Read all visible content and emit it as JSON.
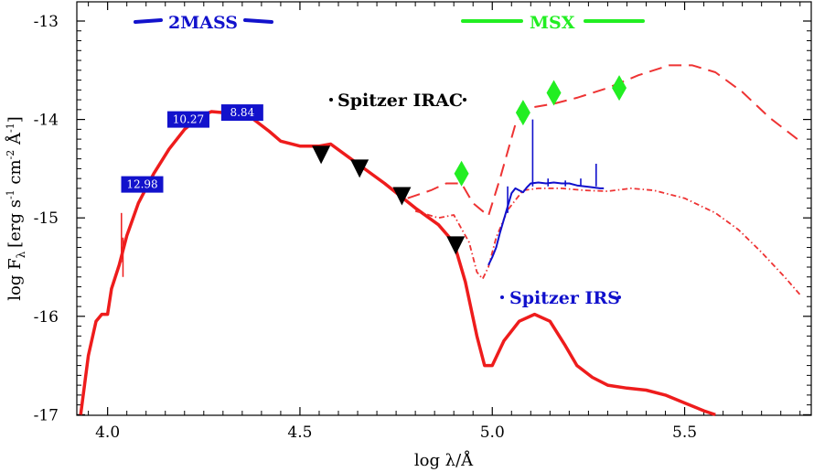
{
  "chart_data": {
    "type": "line",
    "xlabel": "log λ/Å",
    "ylabel": "log F",
    "ylabel_sub": "λ",
    "ylabel_units": "[erg s",
    "ylabel_units_sup1": "-1",
    "ylabel_units_mid": " cm",
    "ylabel_units_sup2": "-2",
    "ylabel_units_end": " Å",
    "ylabel_units_sup3": "-1",
    "ylabel_units_close": "]",
    "xlim": [
      3.92,
      5.8
    ],
    "ylim": [
      -17,
      -12.98
    ],
    "xticks": [
      4.0,
      4.5,
      5.0,
      5.5
    ],
    "xtick_labels": [
      "4.0",
      "4.5",
      "5.0",
      "5.5"
    ],
    "yticks": [
      -13,
      -14,
      -15,
      -16,
      -17
    ],
    "ytick_labels": [
      "-13",
      "-14",
      "-15",
      "-16",
      "-17"
    ],
    "grid": false,
    "colors": {
      "model_red": "#ee1c1c",
      "model_dashed": "#ee3333",
      "irs_blue": "#1010cc",
      "twomass_blue": "#1212cc",
      "msx_green": "#22ee22",
      "irac_black": "#000000"
    },
    "annotations": {
      "twomass": "2MASS",
      "msx": "MSX",
      "irac": "Spitzer IRAC",
      "irs": "Spitzer IRS"
    },
    "twomass_points": [
      {
        "x": 4.09,
        "y": -14.66,
        "label": "12.98"
      },
      {
        "x": 4.21,
        "y": -14.0,
        "label": "10.27"
      },
      {
        "x": 4.35,
        "y": -13.93,
        "label": "8.84"
      }
    ],
    "irac_points": [
      {
        "x": 4.555,
        "y": -14.36
      },
      {
        "x": 4.655,
        "y": -14.5
      },
      {
        "x": 4.765,
        "y": -14.78
      },
      {
        "x": 4.905,
        "y": -15.28
      }
    ],
    "msx_points": [
      {
        "x": 4.92,
        "y": -14.55
      },
      {
        "x": 5.08,
        "y": -13.93
      },
      {
        "x": 5.16,
        "y": -13.73
      },
      {
        "x": 5.33,
        "y": -13.68
      }
    ],
    "series": [
      {
        "style": "solid",
        "x": [
          3.93,
          3.95,
          3.97,
          3.985,
          4.0,
          4.01,
          4.03,
          4.05,
          4.08,
          4.12,
          4.16,
          4.2,
          4.24,
          4.27,
          4.3,
          4.34,
          4.38,
          4.42,
          4.45,
          4.5,
          4.55,
          4.58,
          4.65,
          4.72,
          4.8,
          4.86,
          4.9,
          4.93,
          4.96,
          4.98,
          5.0,
          5.03,
          5.07,
          5.11,
          5.15,
          5.19,
          5.22,
          5.26,
          5.3,
          5.35,
          5.4,
          5.45,
          5.5,
          5.55,
          5.58
        ],
        "y": [
          -17.0,
          -16.4,
          -16.05,
          -15.98,
          -15.98,
          -15.72,
          -15.48,
          -15.18,
          -14.85,
          -14.55,
          -14.3,
          -14.1,
          -13.97,
          -13.92,
          -13.93,
          -13.94,
          -14.0,
          -14.12,
          -14.22,
          -14.27,
          -14.27,
          -14.25,
          -14.45,
          -14.65,
          -14.9,
          -15.07,
          -15.25,
          -15.65,
          -16.2,
          -16.5,
          -16.5,
          -16.25,
          -16.05,
          -15.98,
          -16.05,
          -16.3,
          -16.5,
          -16.62,
          -16.7,
          -16.73,
          -16.75,
          -16.8,
          -16.88,
          -16.96,
          -17.0
        ]
      },
      {
        "style": "dashed",
        "x": [
          4.78,
          4.84,
          4.88,
          4.92,
          4.95,
          4.99,
          5.02,
          5.06,
          5.1,
          5.16,
          5.22,
          5.3,
          5.38,
          5.46,
          5.52,
          5.58,
          5.65,
          5.72,
          5.8
        ],
        "y": [
          -14.8,
          -14.72,
          -14.65,
          -14.65,
          -14.85,
          -14.98,
          -14.6,
          -14.05,
          -13.88,
          -13.84,
          -13.78,
          -13.68,
          -13.55,
          -13.45,
          -13.45,
          -13.52,
          -13.72,
          -13.98,
          -14.22
        ]
      },
      {
        "style": "dash-dot",
        "x": [
          4.8,
          4.86,
          4.9,
          4.94,
          4.96,
          4.975,
          4.99,
          5.01,
          5.04,
          5.08,
          5.12,
          5.18,
          5.24,
          5.3,
          5.36,
          5.42,
          5.5,
          5.58,
          5.64,
          5.7,
          5.76,
          5.8
        ],
        "y": [
          -14.93,
          -15.0,
          -14.97,
          -15.25,
          -15.55,
          -15.62,
          -15.5,
          -15.2,
          -14.92,
          -14.72,
          -14.7,
          -14.7,
          -14.72,
          -14.73,
          -14.7,
          -14.72,
          -14.8,
          -14.95,
          -15.12,
          -15.35,
          -15.6,
          -15.78
        ]
      },
      {
        "style": "irs",
        "x": [
          4.99,
          5.0,
          5.01,
          5.02,
          5.035,
          5.05,
          5.06,
          5.07,
          5.08,
          5.09,
          5.1,
          5.12,
          5.14,
          5.16,
          5.18,
          5.2,
          5.22,
          5.24,
          5.26,
          5.28,
          5.29
        ],
        "y": [
          -15.48,
          -15.4,
          -15.3,
          -15.15,
          -14.95,
          -14.75,
          -14.7,
          -14.72,
          -14.74,
          -14.69,
          -14.65,
          -14.64,
          -14.65,
          -14.64,
          -14.65,
          -14.65,
          -14.67,
          -14.68,
          -14.69,
          -14.7,
          -14.7
        ]
      }
    ]
  }
}
